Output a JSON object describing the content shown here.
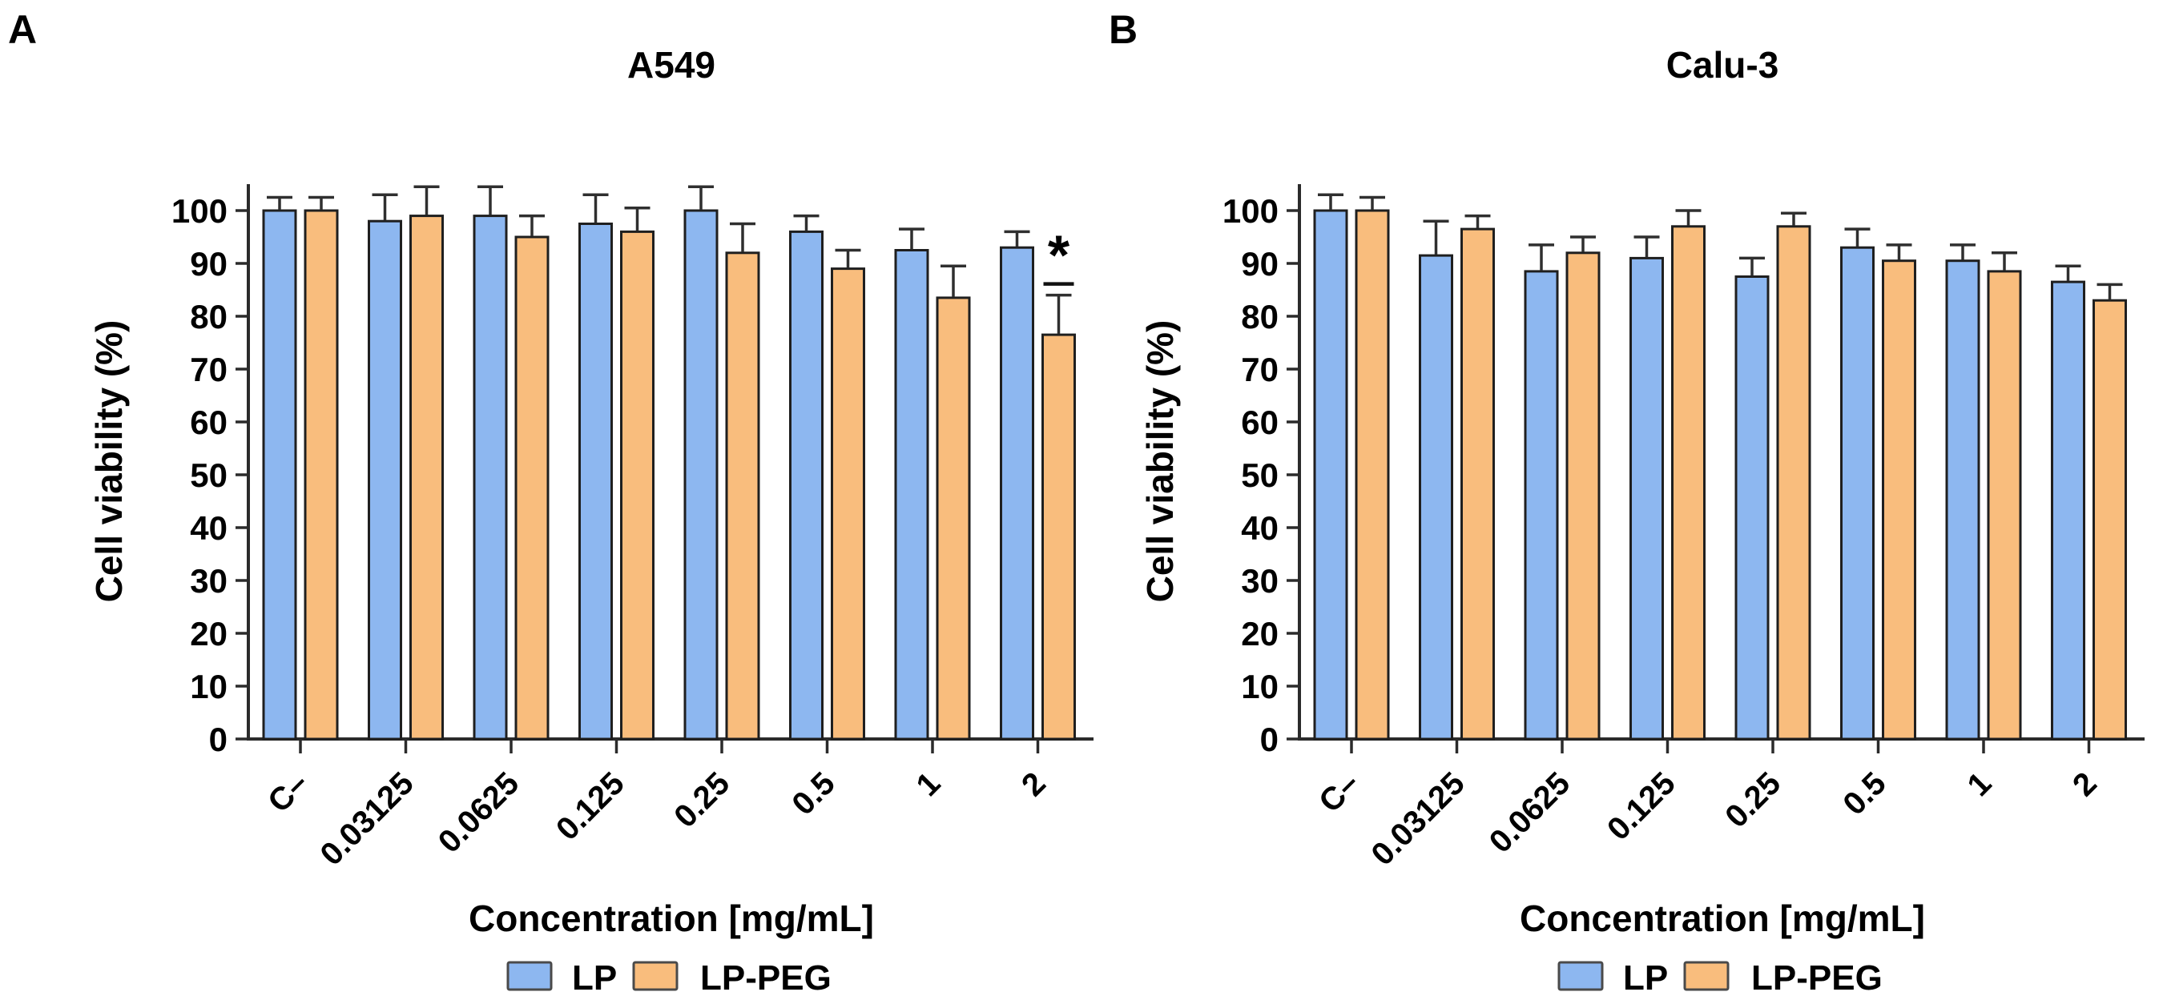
{
  "figure": {
    "panels": [
      {
        "panel_label": "A",
        "chart_data": {
          "type": "bar",
          "title": "A549",
          "xlabel": "Concentration [mg/mL]",
          "ylabel": "Cell viability (%)",
          "ylim": [
            0,
            100
          ],
          "yticks": [
            0,
            10,
            20,
            30,
            40,
            50,
            60,
            70,
            80,
            90,
            100
          ],
          "grid": false,
          "legend_position": "bottom",
          "error_bars": "upper",
          "categories": [
            "C–",
            "0.03125",
            "0.0625",
            "0.125",
            "0.25",
            "0.5",
            "1",
            "2"
          ],
          "series": [
            {
              "name": "LP",
              "color": "#8DB7F0",
              "values": [
                100,
                98,
                99,
                97.5,
                100,
                96,
                92.5,
                93
              ],
              "errors": [
                2.5,
                5,
                5.5,
                5.5,
                4.5,
                3,
                4,
                3
              ]
            },
            {
              "name": "LP-PEG",
              "color": "#F9BD7D",
              "values": [
                100,
                99,
                95,
                96,
                92,
                89,
                83.5,
                76.5
              ],
              "errors": [
                2.5,
                5.5,
                4,
                4.5,
                5.5,
                3.5,
                6,
                7.5
              ]
            }
          ],
          "annotations": [
            {
              "type": "significance",
              "symbol": "*",
              "series": "LP-PEG",
              "category": "2"
            }
          ]
        }
      },
      {
        "panel_label": "B",
        "chart_data": {
          "type": "bar",
          "title": "Calu-3",
          "xlabel": "Concentration [mg/mL]",
          "ylabel": "Cell viability (%)",
          "ylim": [
            0,
            100
          ],
          "yticks": [
            0,
            10,
            20,
            30,
            40,
            50,
            60,
            70,
            80,
            90,
            100
          ],
          "grid": false,
          "legend_position": "bottom",
          "error_bars": "upper",
          "categories": [
            "C–",
            "0.03125",
            "0.0625",
            "0.125",
            "0.25",
            "0.5",
            "1",
            "2"
          ],
          "series": [
            {
              "name": "LP",
              "color": "#8DB7F0",
              "values": [
                100,
                91.5,
                88.5,
                91,
                87.5,
                93,
                90.5,
                86.5
              ],
              "errors": [
                3,
                6.5,
                5,
                4,
                3.5,
                3.5,
                3,
                3
              ]
            },
            {
              "name": "LP-PEG",
              "color": "#F9BD7D",
              "values": [
                100,
                96.5,
                92,
                97,
                97,
                90.5,
                88.5,
                83
              ],
              "errors": [
                2.5,
                2.5,
                3,
                3,
                2.5,
                3,
                3.5,
                3
              ]
            }
          ],
          "annotations": []
        }
      }
    ],
    "colors": {
      "lp": "#8DB7F0",
      "lp_peg": "#F9BD7D",
      "bar_outline": "#1F1F1F",
      "error_bar": "#2F2F2F",
      "axis": "#2B2B2B",
      "background": "#FFFFFF"
    }
  }
}
